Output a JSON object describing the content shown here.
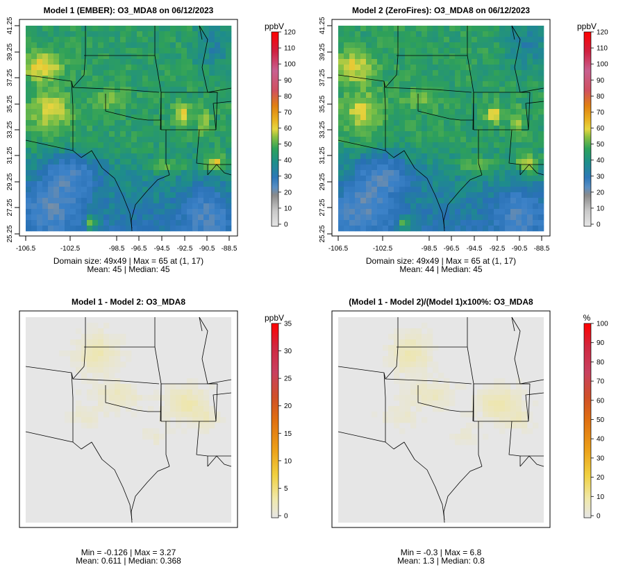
{
  "panels": [
    {
      "title": "Model 1 (EMBER): O3_MDA8 on 06/12/2023",
      "unit": "ppbV",
      "footer1": "Domain size: 49x49 | Max = 65 at (1, 17)",
      "footer2": "Mean: 45 |  Median: 45",
      "scale_ticks": [
        "120",
        "110",
        "100",
        "90",
        "80",
        "70",
        "60",
        "50",
        "40",
        "30",
        "20",
        "10",
        "0"
      ],
      "x_ticks": [
        "-106.5",
        "-102.5",
        "-98.5",
        "-96.5",
        "-94.5",
        "-92.5",
        "-90.5",
        "-88.5"
      ],
      "y_ticks": [
        "41.25",
        "39.25",
        "37.25",
        "35.25",
        "33.25",
        "31.25",
        "29.25",
        "27.25",
        "25.25"
      ]
    },
    {
      "title": "Model 2 (ZeroFires): O3_MDA8 on 06/12/2023",
      "unit": "ppbV",
      "footer1": "Domain size: 49x49 | Max = 65 at (1, 17)",
      "footer2": "Mean: 44 |  Median: 45",
      "scale_ticks": [
        "120",
        "110",
        "100",
        "90",
        "80",
        "70",
        "60",
        "50",
        "40",
        "30",
        "20",
        "10",
        "0"
      ],
      "x_ticks": [
        "-106.5",
        "-102.5",
        "-98.5",
        "-96.5",
        "-94.5",
        "-92.5",
        "-90.5",
        "-88.5"
      ],
      "y_ticks": [
        "41.25",
        "39.25",
        "37.25",
        "35.25",
        "33.25",
        "31.25",
        "29.25",
        "27.25",
        "25.25"
      ]
    },
    {
      "title": "Model 1 - Model 2: O3_MDA8",
      "unit": "ppbV",
      "footer1": "Min = -0.126 | Max = 3.27",
      "footer2": "Mean: 0.611 |  Median: 0.368",
      "scale_ticks": [
        "35",
        "30",
        "25",
        "20",
        "15",
        "10",
        "5",
        "0"
      ]
    },
    {
      "title": "(Model 1 - Model 2)/(Model 1)x100%: O3_MDA8",
      "unit": "%",
      "footer1": "Min = -0.3 | Max = 6.8",
      "footer2": "Mean: 1.3 |  Median: 0.8",
      "scale_ticks": [
        "100",
        "90",
        "80",
        "70",
        "60",
        "50",
        "40",
        "30",
        "20",
        "10",
        "0"
      ]
    }
  ],
  "colors": {
    "abs_scale": [
      "#e6e6e6",
      "#b3b3b3",
      "#8a8a8a",
      "#3a8fc8",
      "#2e78b8",
      "#1f8f8a",
      "#2ea25a",
      "#5cb84a",
      "#e6d640",
      "#e4a020",
      "#d96020",
      "#c94060",
      "#c06080",
      "#d01020",
      "#ee0000"
    ],
    "diff_scale": [
      "#e6e6e6",
      "#f0e8b0",
      "#f2d850",
      "#f0b820",
      "#e89010",
      "#e06010",
      "#d04030",
      "#c84060",
      "#d02030",
      "#ff0000"
    ],
    "map_background": "#e6e6e6"
  }
}
